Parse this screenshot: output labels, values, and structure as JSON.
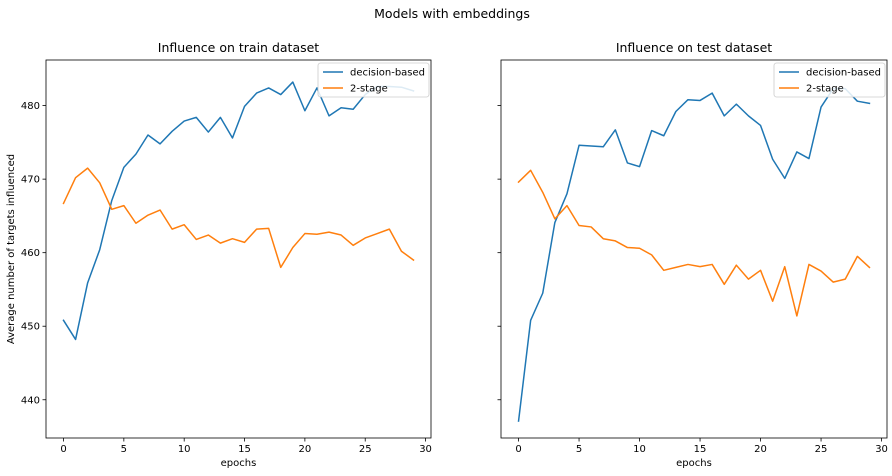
{
  "figure": {
    "suptitle": "Models with embeddings"
  },
  "chart_data": [
    {
      "type": "line",
      "title": "Influence on train dataset",
      "xlabel": "epochs",
      "ylabel": "Average number of targets influenced",
      "xlim": [
        -1.45,
        30.45
      ],
      "ylim": [
        434.8,
        486.2
      ],
      "xticks": [
        0,
        5,
        10,
        15,
        20,
        25,
        30
      ],
      "yticks": [
        440,
        450,
        460,
        470,
        480
      ],
      "grid": false,
      "legend_position": "upper right",
      "x": [
        0,
        1,
        2,
        3,
        4,
        5,
        6,
        7,
        8,
        9,
        10,
        11,
        12,
        13,
        14,
        15,
        16,
        17,
        18,
        19,
        20,
        21,
        22,
        23,
        24,
        25,
        26,
        27,
        28,
        29
      ],
      "series": [
        {
          "name": "decision-based",
          "color": "#1f77b4",
          "values": [
            450.8,
            448.2,
            455.9,
            460.4,
            467.1,
            471.6,
            473.4,
            476.0,
            474.8,
            476.5,
            477.9,
            478.4,
            476.4,
            478.4,
            475.6,
            479.9,
            481.7,
            482.4,
            481.5,
            483.2,
            479.3,
            482.4,
            478.6,
            479.7,
            479.5,
            481.5,
            482.6,
            482.6,
            482.5,
            482.0
          ]
        },
        {
          "name": "2-stage",
          "color": "#ff7f0e",
          "values": [
            466.7,
            470.2,
            471.5,
            469.5,
            465.9,
            466.4,
            464.0,
            465.1,
            465.8,
            463.2,
            463.8,
            461.8,
            462.4,
            461.3,
            461.9,
            461.4,
            463.2,
            463.3,
            458.0,
            460.7,
            462.6,
            462.5,
            462.8,
            462.4,
            461.0,
            462.0,
            462.6,
            463.2,
            460.2,
            459.0
          ]
        }
      ]
    },
    {
      "type": "line",
      "title": "Influence on test dataset",
      "xlabel": "epochs",
      "ylabel": "",
      "xlim": [
        -1.45,
        30.45
      ],
      "ylim": [
        434.8,
        486.2
      ],
      "xticks": [
        0,
        5,
        10,
        15,
        20,
        25,
        30
      ],
      "yticks": [
        440,
        450,
        460,
        470,
        480
      ],
      "grid": false,
      "legend_position": "upper right",
      "x": [
        0,
        1,
        2,
        3,
        4,
        5,
        6,
        7,
        8,
        9,
        10,
        11,
        12,
        13,
        14,
        15,
        16,
        17,
        18,
        19,
        20,
        21,
        22,
        23,
        24,
        25,
        26,
        27,
        28,
        29
      ],
      "series": [
        {
          "name": "decision-based",
          "color": "#1f77b4",
          "values": [
            437.1,
            450.8,
            454.5,
            464.1,
            468.0,
            474.6,
            474.5,
            474.4,
            476.7,
            472.2,
            471.7,
            476.6,
            475.9,
            479.2,
            480.8,
            480.7,
            481.7,
            478.6,
            480.2,
            478.6,
            477.3,
            472.7,
            470.1,
            473.7,
            472.8,
            479.8,
            482.3,
            482.3,
            480.6,
            480.3
          ]
        },
        {
          "name": "2-stage",
          "color": "#ff7f0e",
          "values": [
            469.6,
            471.2,
            468.2,
            464.6,
            466.4,
            463.7,
            463.5,
            461.9,
            461.6,
            460.7,
            460.6,
            459.7,
            457.6,
            458.0,
            458.4,
            458.1,
            458.4,
            455.7,
            458.3,
            456.4,
            457.6,
            453.4,
            458.1,
            451.4,
            458.4,
            457.5,
            456.0,
            456.4,
            459.5,
            458.0
          ]
        }
      ]
    }
  ]
}
